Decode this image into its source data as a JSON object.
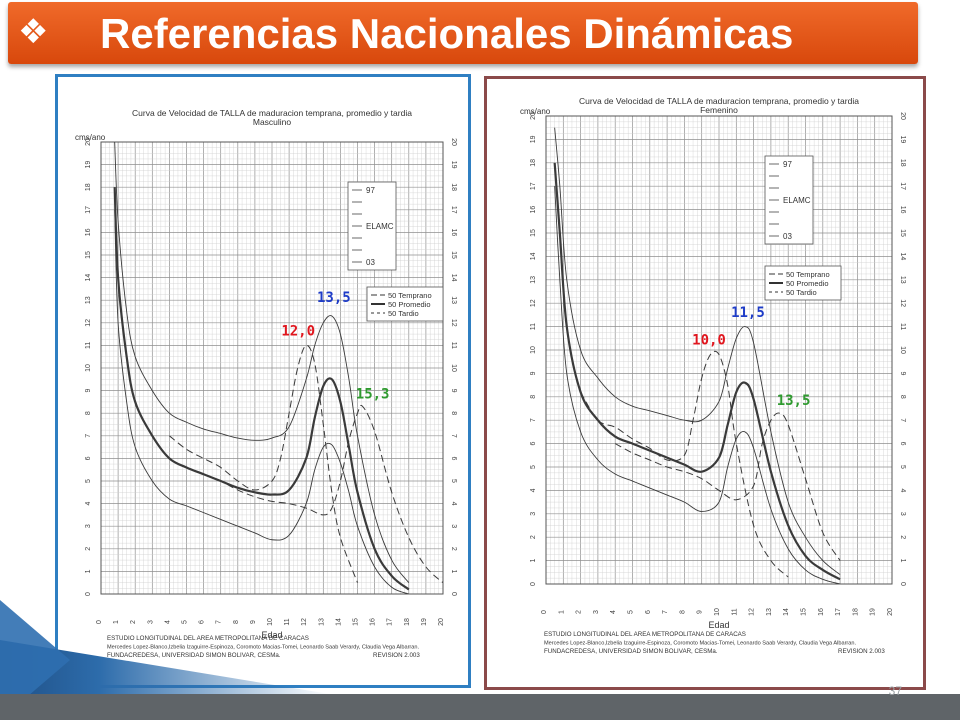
{
  "slide": {
    "title": "Referencias Nacionales Dinámicas",
    "bullet_icon": "diamond-cluster-icon",
    "slide_number": "37"
  },
  "colors": {
    "title_bar": "#e85d1c",
    "left_frame": "#2f7fc2",
    "right_frame": "#8b4a4a",
    "label_red": "#e0161e",
    "label_blue": "#1e3cc8",
    "label_green": "#2e9a2e"
  },
  "chart_data": [
    {
      "type": "line",
      "title": "Curva de Velocidad de TALLA de maduracion temprana, promedio y tardia",
      "subtitle": "Masculino",
      "ylabel": "cms/ano",
      "xlabel": "Edad",
      "x_ticks": [
        "0",
        "1",
        "2",
        "3",
        "4",
        "5",
        "6",
        "7",
        "8",
        "9",
        "10",
        "11",
        "12",
        "13",
        "14",
        "15",
        "16",
        "17",
        "18",
        "19",
        "20"
      ],
      "y_ticks": [
        "0",
        "1",
        "2",
        "3",
        "4",
        "5",
        "6",
        "7",
        "8",
        "9",
        "10",
        "11",
        "12",
        "13",
        "14",
        "15",
        "16",
        "17",
        "18",
        "19",
        "20"
      ],
      "xlim": [
        0,
        20
      ],
      "ylim": [
        0,
        20
      ],
      "grid": true,
      "legend_percentiles": [
        "97",
        "ELAMC",
        "03"
      ],
      "legend_maturation": [
        "50 Temprano",
        "50 Promedio",
        "50 Tardio"
      ],
      "peak_labels": [
        {
          "text": "12,0",
          "x": 12.0,
          "y": 11.0,
          "color": "red"
        },
        {
          "text": "13,5",
          "x": 13.5,
          "y": 12.3,
          "color": "blue"
        },
        {
          "text": "15,3",
          "x": 15.3,
          "y": 8.3,
          "color": "green"
        }
      ],
      "series": [
        {
          "name": "97",
          "x": [
            0.8,
            1,
            1.5,
            2,
            3,
            4,
            5,
            6,
            7,
            8,
            9,
            10,
            11,
            12,
            12.5,
            13,
            13.5,
            14,
            14.5,
            15,
            16,
            17,
            18
          ],
          "y": [
            20,
            16.5,
            12.5,
            10.5,
            9.0,
            8.0,
            7.6,
            7.3,
            7.1,
            6.9,
            6.8,
            6.9,
            7.4,
            9.5,
            11.0,
            12.0,
            12.3,
            11.5,
            9.5,
            7.0,
            3.5,
            1.5,
            0.5
          ]
        },
        {
          "name": "50 Promedio",
          "x": [
            0.8,
            1,
            1.5,
            2,
            3,
            4,
            5,
            6,
            7,
            8,
            9,
            10,
            11,
            12,
            12.5,
            13,
            13.5,
            14,
            14.5,
            15,
            16,
            17,
            18
          ],
          "y": [
            18,
            14,
            10.5,
            8.5,
            7.0,
            6.0,
            5.6,
            5.3,
            5.0,
            4.7,
            4.5,
            4.4,
            4.6,
            6.0,
            7.8,
            9.2,
            9.5,
            8.5,
            6.5,
            4.5,
            2.0,
            0.8,
            0.2
          ]
        },
        {
          "name": "03",
          "x": [
            0.8,
            1,
            1.5,
            2,
            3,
            4,
            5,
            6,
            7,
            8,
            9,
            10,
            11,
            12,
            12.5,
            13,
            13.5,
            14,
            14.5,
            15,
            16,
            17,
            18
          ],
          "y": [
            17,
            12,
            8.5,
            6.5,
            5.0,
            4.2,
            3.9,
            3.6,
            3.3,
            3.0,
            2.7,
            2.4,
            2.6,
            4.0,
            5.5,
            6.5,
            6.6,
            5.8,
            4.5,
            3.0,
            1.2,
            0.3,
            0
          ]
        },
        {
          "name": "50 Temprano",
          "x": [
            4,
            5,
            6,
            7,
            8,
            9,
            10,
            10.5,
            11,
            11.5,
            12,
            12.5,
            13,
            13.5,
            14,
            15
          ],
          "y": [
            7.0,
            6.4,
            6.0,
            5.6,
            5.0,
            4.6,
            5.0,
            6.0,
            8.0,
            10.0,
            11.0,
            10.2,
            7.5,
            4.5,
            2.5,
            0.5
          ]
        },
        {
          "name": "50 Tardio",
          "x": [
            5,
            6,
            7,
            8,
            9,
            10,
            11,
            12,
            13,
            13.5,
            14,
            14.5,
            15,
            15.3,
            16,
            17,
            18,
            19,
            20
          ],
          "y": [
            5.6,
            5.3,
            5.0,
            4.6,
            4.3,
            4.1,
            4.0,
            3.8,
            3.5,
            3.8,
            5.0,
            6.8,
            8.0,
            8.3,
            7.2,
            4.5,
            2.5,
            1.2,
            0.5
          ]
        }
      ],
      "footer_lines": [
        "ESTUDIO LONGITUDINAL DEL AREA METROPOLITANA DE CARACAS",
        "Mercedes Lopez-Blanco,Izbelia Izaguirre-Espinoza, Coromoto Macias-Tomei, Leonardo Saab Verardy, Claudia Vega Albarran.",
        "FUNDACREDESA, UNIVERSIDAD SIMON BOLIVAR, CESMa."
      ],
      "revision": "REVISION 2.003"
    },
    {
      "type": "line",
      "title": "Curva de Velocidad de TALLA de maduracion temprana, promedio y tardia",
      "subtitle": "Femenino",
      "ylabel": "cms/ano",
      "xlabel": "Edad",
      "x_ticks": [
        "0",
        "1",
        "2",
        "3",
        "4",
        "5",
        "6",
        "7",
        "8",
        "9",
        "10",
        "11",
        "12",
        "13",
        "14",
        "15",
        "16",
        "17",
        "18",
        "19",
        "20"
      ],
      "y_ticks": [
        "0",
        "1",
        "2",
        "3",
        "4",
        "5",
        "6",
        "7",
        "8",
        "9",
        "10",
        "11",
        "12",
        "13",
        "14",
        "15",
        "16",
        "17",
        "18",
        "19",
        "20"
      ],
      "xlim": [
        0,
        20
      ],
      "ylim": [
        0,
        20
      ],
      "grid": true,
      "legend_percentiles": [
        "97",
        "ELAMC",
        "03"
      ],
      "legend_maturation": [
        "50 Temprano",
        "50 Promedio",
        "50 Tardio"
      ],
      "peak_labels": [
        {
          "text": "10,0",
          "x": 10.0,
          "y": 9.8,
          "color": "red"
        },
        {
          "text": "11,5",
          "x": 11.5,
          "y": 10.9,
          "color": "blue"
        },
        {
          "text": "13,5",
          "x": 13.5,
          "y": 7.3,
          "color": "green"
        }
      ],
      "series": [
        {
          "name": "97",
          "x": [
            0.5,
            0.8,
            1.2,
            2,
            3,
            4,
            5,
            6,
            7,
            8,
            9,
            10,
            10.5,
            11,
            11.5,
            12,
            13,
            14,
            15,
            16,
            17
          ],
          "y": [
            19.5,
            17,
            13,
            10,
            8.8,
            8.0,
            7.6,
            7.4,
            7.2,
            7.0,
            7.0,
            7.8,
            9.2,
            10.5,
            11.0,
            10.3,
            6.5,
            3.5,
            2.0,
            1.0,
            0.4
          ]
        },
        {
          "name": "50 Promedio",
          "x": [
            0.5,
            0.8,
            1.2,
            2,
            3,
            4,
            5,
            6,
            7,
            8,
            9,
            10,
            10.5,
            11,
            11.5,
            12,
            13,
            14,
            15,
            16,
            17
          ],
          "y": [
            18,
            15,
            11.0,
            8.2,
            7.0,
            6.3,
            6.0,
            5.7,
            5.4,
            5.1,
            4.8,
            5.4,
            6.8,
            8.2,
            8.6,
            7.9,
            4.8,
            2.5,
            1.2,
            0.6,
            0.2
          ]
        },
        {
          "name": "03",
          "x": [
            0.5,
            0.8,
            1.2,
            2,
            3,
            4,
            5,
            6,
            7,
            8,
            9,
            10,
            10.5,
            11,
            11.5,
            12,
            13,
            14,
            15,
            16,
            17
          ],
          "y": [
            17,
            13,
            9.0,
            6.5,
            5.3,
            4.7,
            4.4,
            4.1,
            3.8,
            3.5,
            3.1,
            3.5,
            5.0,
            6.2,
            6.5,
            5.8,
            3.2,
            1.5,
            0.6,
            0.2,
            0
          ]
        },
        {
          "name": "50 Temprano",
          "x": [
            2,
            3,
            4,
            5,
            6,
            7,
            8,
            8.5,
            9,
            9.5,
            10,
            10.5,
            11,
            12,
            13,
            14
          ],
          "y": [
            8.2,
            7.0,
            6.7,
            6.2,
            5.8,
            5.3,
            5.5,
            7.0,
            8.8,
            9.8,
            9.8,
            8.5,
            6.0,
            2.5,
            1.0,
            0.3
          ]
        },
        {
          "name": "50 Tardio",
          "x": [
            4,
            5,
            6,
            7,
            8,
            9,
            10,
            11,
            12,
            12.5,
            13,
            13.5,
            14,
            15,
            16,
            17
          ],
          "y": [
            6.0,
            5.6,
            5.3,
            5.0,
            4.8,
            4.5,
            4.0,
            3.6,
            4.2,
            6.0,
            7.0,
            7.3,
            6.8,
            4.5,
            2.2,
            1.0
          ]
        }
      ],
      "footer_lines": [
        "ESTUDIO LONGITUDINAL DEL AREA METROPOLITANA DE CARACAS",
        "Mercedes Lopez-Blanco,Izbelia Izaguirre-Espinoza, Coromoto Macias-Tomei, Leonardo Saab Verardy, Claudia Vega Albarran.",
        "FUNDACREDESA, UNIVERSIDAD SIMON BOLIVAR, CESMa."
      ],
      "revision": "REVISION 2.003"
    }
  ]
}
